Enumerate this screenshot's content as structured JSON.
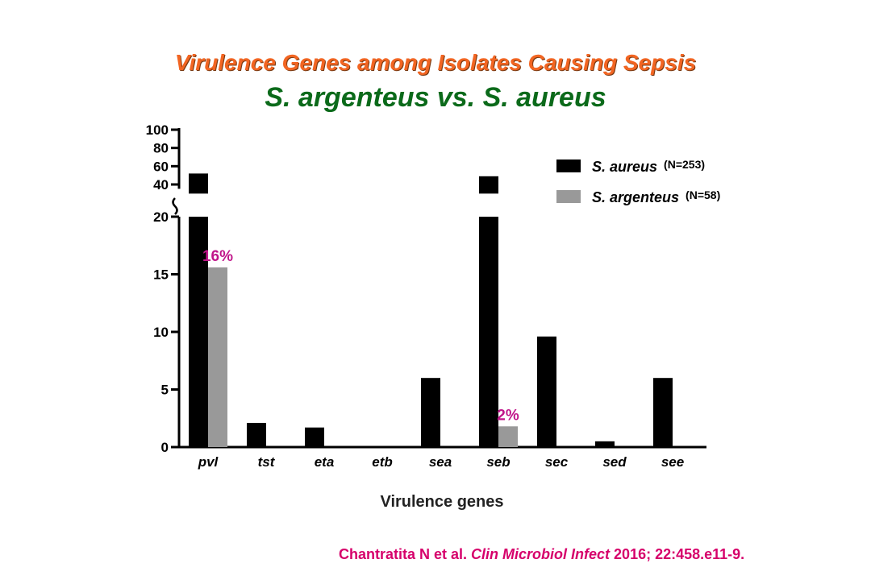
{
  "title": "Virulence Genes among Isolates Causing Sepsis",
  "subtitle": "S. argenteus vs. S. aureus",
  "chart_data": {
    "type": "bar",
    "categories": [
      "pvl",
      "tst",
      "eta",
      "etb",
      "sea",
      "seb",
      "sec",
      "sed",
      "see"
    ],
    "series": [
      {
        "name": "S. aureus",
        "n_label": "(N=253)",
        "color": "#000000",
        "values": [
          52,
          2.1,
          1.7,
          0,
          6.0,
          49,
          9.6,
          0.5,
          6.0
        ]
      },
      {
        "name": "S. argenteus",
        "n_label": "(N=58)",
        "color": "#999999",
        "values": [
          15.6,
          0,
          0,
          0,
          0,
          1.8,
          0,
          0,
          0
        ]
      }
    ],
    "data_labels": [
      {
        "category": "pvl",
        "series": "S. argenteus",
        "text": "16%"
      },
      {
        "category": "seb",
        "series": "S. argenteus",
        "text": "2%"
      }
    ],
    "xlabel": "Virulence genes",
    "ylabel": "",
    "y_lower": {
      "range": [
        0,
        20
      ],
      "ticks": [
        "0",
        "5",
        "10",
        "15",
        "20"
      ]
    },
    "y_upper": {
      "range": [
        30,
        100
      ],
      "ticks": [
        "40",
        "60",
        "80",
        "100"
      ]
    },
    "axis_break": true,
    "legend_position": "top-right",
    "label_color": "#c0158a"
  },
  "citation": {
    "prefix": "Chantratita N et al. ",
    "journal": "Clin Microbiol Infect",
    "suffix": " 2016; 22:458.e11-9."
  }
}
